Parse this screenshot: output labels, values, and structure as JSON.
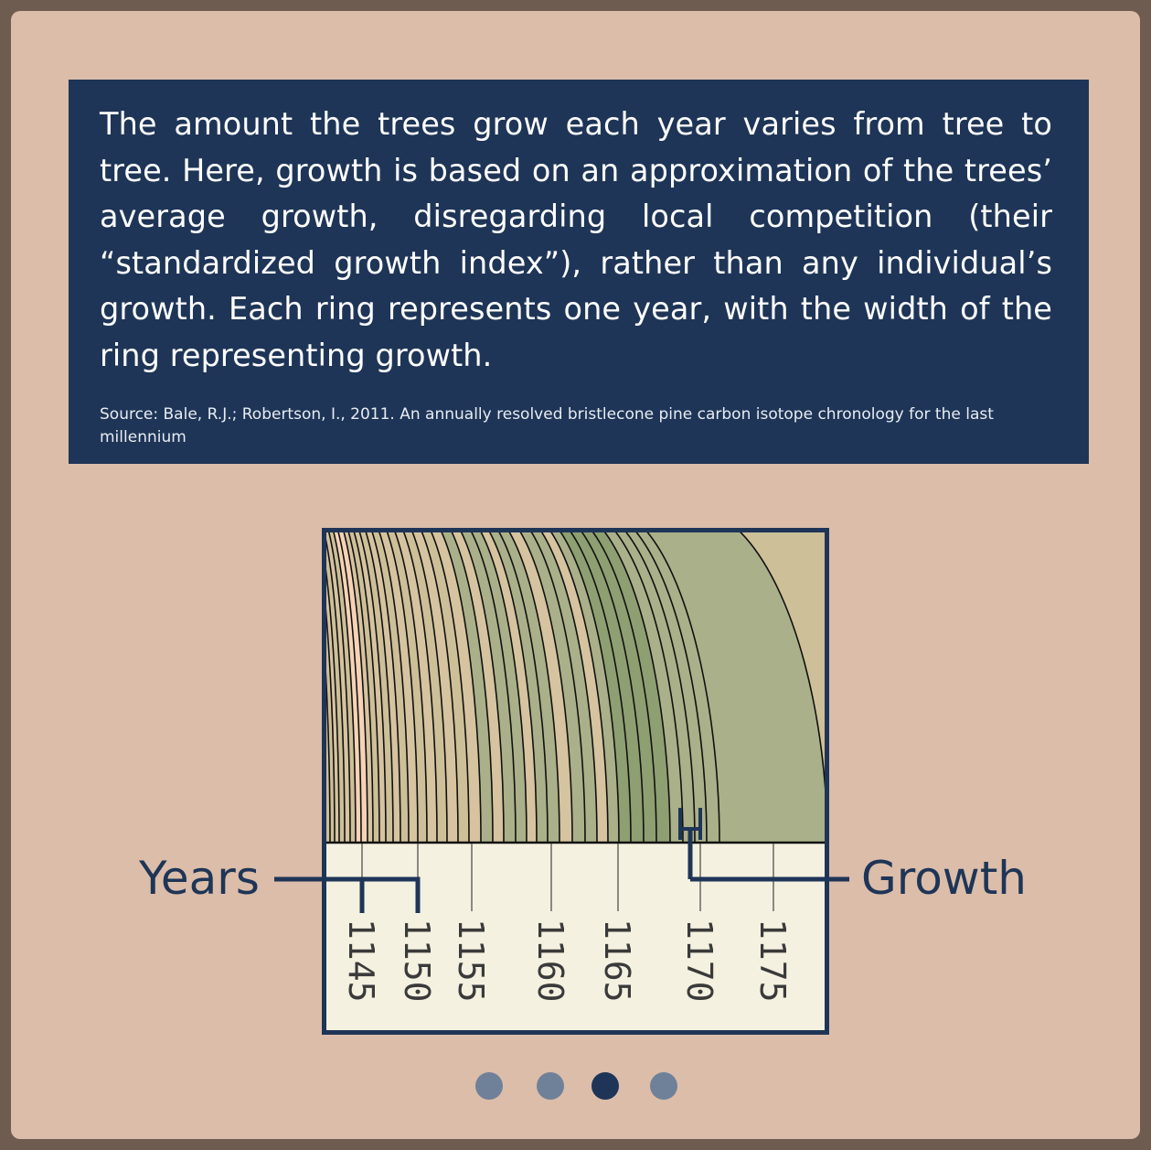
{
  "info": {
    "text": "The amount the trees grow each year varies from tree to tree. Here, growth is based on an approximation of the trees’ average growth, disregarding local competition (their “standardized growth index”), rather than any individual’s growth. Each ring represents one year, with the width of the ring representing growth.",
    "source": "Source: Bale, R.J.; Robertson, I., 2011. An annually resolved bristlecone pine carbon isotope chronology for the last millennium"
  },
  "diagram": {
    "years_label": "Years",
    "growth_label": "Growth",
    "year_ticks": [
      "1145",
      "1150",
      "1155",
      "1160",
      "1165",
      "1170",
      "1175"
    ],
    "colors": {
      "frame": "#1e3557",
      "ring_tan": "#cdbf98",
      "ring_beige": "#d6c3a0",
      "ring_olive": "#aab089",
      "ring_green": "#8e9f72",
      "ring_peach": "#f6d3b6",
      "ruler": "#f4f1e0"
    }
  },
  "pagination": {
    "count": 4,
    "active_index": 2
  }
}
